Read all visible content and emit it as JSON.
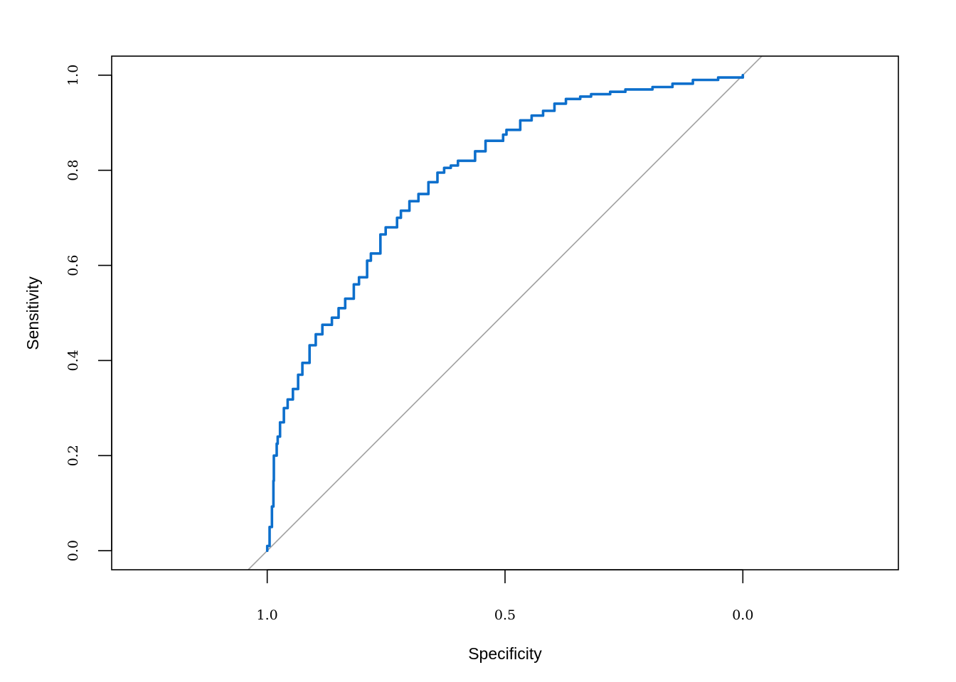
{
  "chart_data": {
    "type": "line",
    "title": "",
    "xlabel": "Specificity",
    "ylabel": "Sensitivity",
    "x_reversed": true,
    "xlim": [
      1.327,
      -0.327
    ],
    "ylim": [
      -0.04,
      1.04
    ],
    "xticks": [
      1.0,
      0.5,
      0.0
    ],
    "xtick_labels": [
      "1.0",
      "0.5",
      "0.0"
    ],
    "yticks": [
      0.0,
      0.2,
      0.4,
      0.6,
      0.8,
      1.0
    ],
    "ytick_labels": [
      "0.0",
      "0.2",
      "0.4",
      "0.6",
      "0.8",
      "1.0"
    ],
    "grid": false,
    "legend": "none",
    "colors": {
      "roc": "#0d6fcc",
      "reference": "#a0a0a0",
      "axes": "#000000"
    },
    "reference_line": {
      "x": [
        1.0,
        0.0
      ],
      "y": [
        0.0,
        1.0
      ]
    },
    "series": [
      {
        "specificity": [
          1.0,
          1.0,
          0.995,
          0.99,
          0.987,
          0.986,
          0.98,
          0.978,
          0.973,
          0.965,
          0.957,
          0.946,
          0.935,
          0.926,
          0.911,
          0.898,
          0.884,
          0.864,
          0.85,
          0.836,
          0.818,
          0.807,
          0.79,
          0.782,
          0.762,
          0.751,
          0.727,
          0.719,
          0.701,
          0.682,
          0.661,
          0.642,
          0.628,
          0.614,
          0.599,
          0.563,
          0.541,
          0.504,
          0.497,
          0.468,
          0.444,
          0.42,
          0.396,
          0.372,
          0.342,
          0.319,
          0.279,
          0.247,
          0.19,
          0.148,
          0.105,
          0.052,
          0.0
        ],
        "sensitivity": [
          0.0,
          0.01,
          0.05,
          0.093,
          0.147,
          0.2,
          0.225,
          0.24,
          0.27,
          0.3,
          0.318,
          0.34,
          0.37,
          0.395,
          0.432,
          0.455,
          0.475,
          0.49,
          0.51,
          0.53,
          0.56,
          0.575,
          0.61,
          0.625,
          0.665,
          0.68,
          0.7,
          0.715,
          0.735,
          0.75,
          0.775,
          0.795,
          0.805,
          0.81,
          0.82,
          0.84,
          0.862,
          0.875,
          0.885,
          0.905,
          0.915,
          0.925,
          0.94,
          0.95,
          0.955,
          0.96,
          0.965,
          0.97,
          0.975,
          0.982,
          0.99,
          0.995,
          1.0
        ]
      }
    ]
  }
}
